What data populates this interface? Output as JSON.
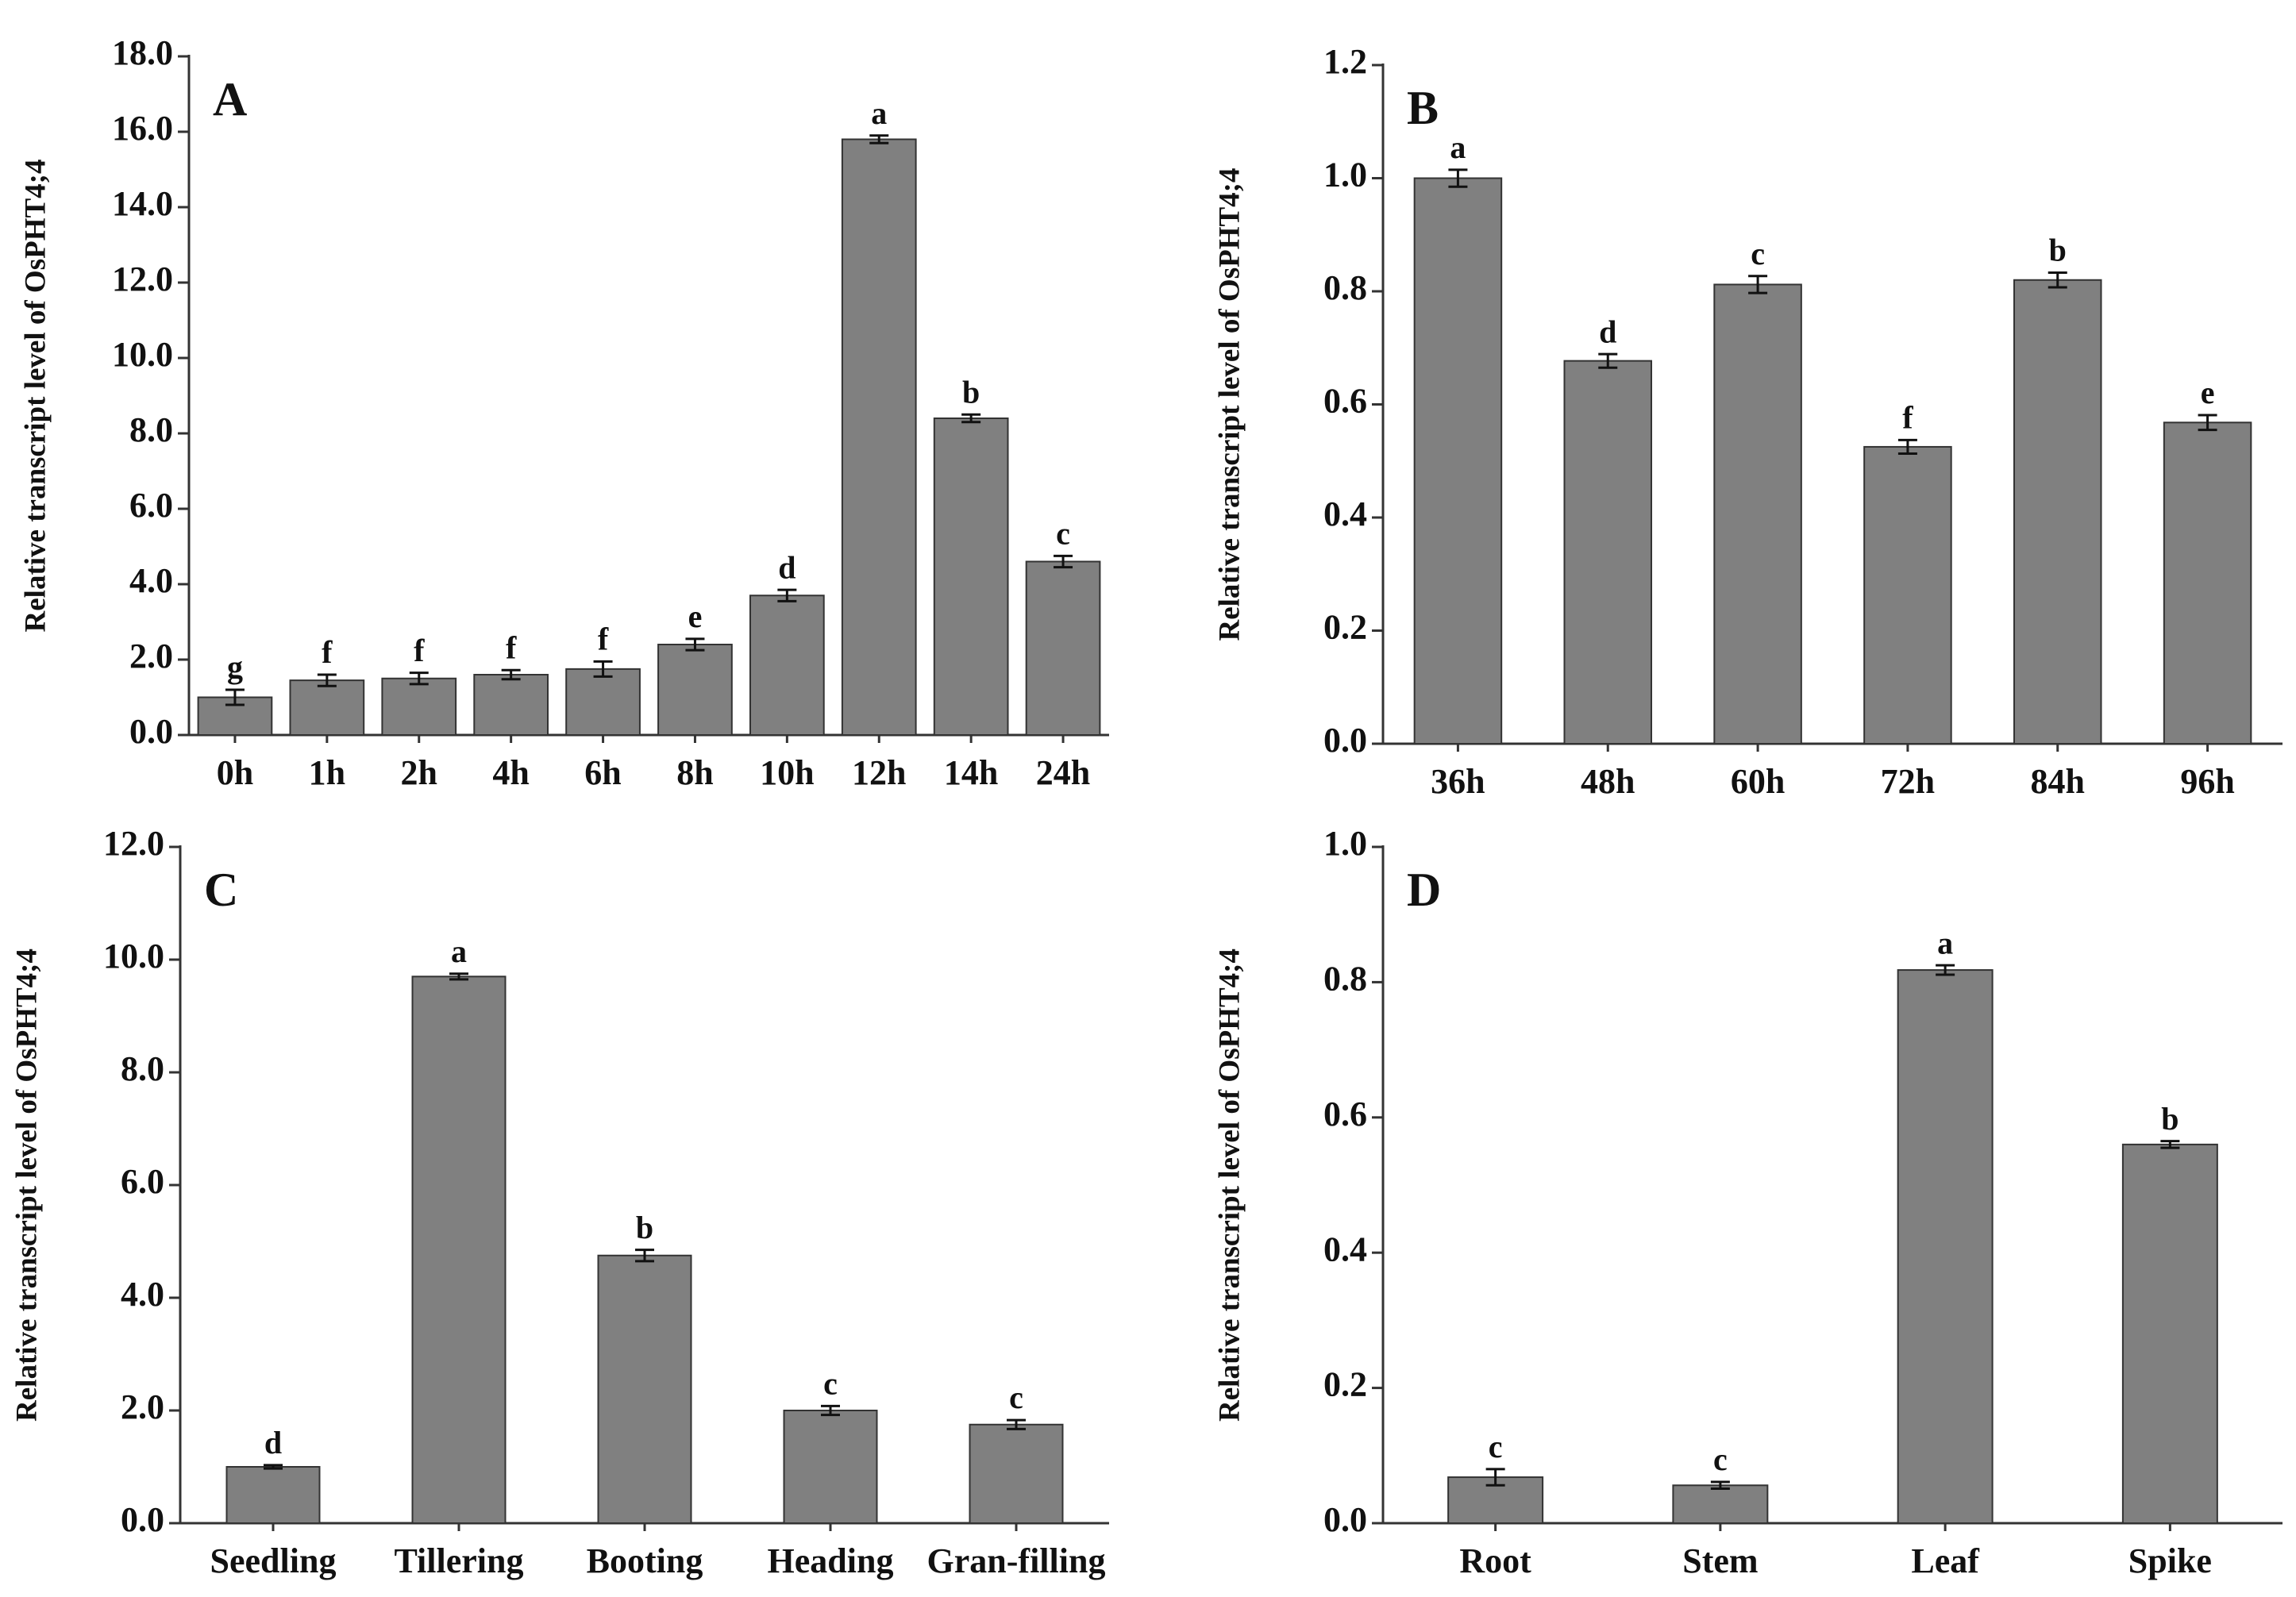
{
  "chart_data": [
    {
      "type": "bar",
      "panel_label": "A",
      "y_label": "Relative transcript level of OsPHT4;4",
      "color": "#808080",
      "categories": [
        "0h",
        "1h",
        "2h",
        "4h",
        "6h",
        "8h",
        "10h",
        "12h",
        "14h",
        "24h"
      ],
      "values": [
        1.0,
        1.45,
        1.5,
        1.6,
        1.75,
        2.4,
        3.7,
        15.8,
        8.4,
        4.6
      ],
      "errors": [
        0.2,
        0.15,
        0.15,
        0.12,
        0.2,
        0.15,
        0.15,
        0.1,
        0.1,
        0.15
      ],
      "annotations": [
        "g",
        "f",
        "f",
        "f",
        "f",
        "e",
        "d",
        "a",
        "b",
        "c"
      ],
      "ylim": [
        0,
        18
      ],
      "yticks": [
        {
          "value": 0,
          "label": "0.0"
        },
        {
          "value": 2,
          "label": "2.0"
        },
        {
          "value": 4,
          "label": "4.0"
        },
        {
          "value": 6,
          "label": "6.0"
        },
        {
          "value": 8,
          "label": "8.0"
        },
        {
          "value": 10,
          "label": "10.0"
        },
        {
          "value": 12,
          "label": "12.0"
        },
        {
          "value": 14,
          "label": "14.0"
        },
        {
          "value": 16,
          "label": "16.0"
        },
        {
          "value": 18,
          "label": "18.0"
        }
      ]
    },
    {
      "type": "bar",
      "panel_label": "B",
      "y_label": "Relative transcript level of OsPHT4;4",
      "color": "#808080",
      "categories": [
        "36h",
        "48h",
        "60h",
        "72h",
        "84h",
        "96h"
      ],
      "values": [
        1.0,
        0.677,
        0.812,
        0.525,
        0.82,
        0.568
      ],
      "errors": [
        0.015,
        0.012,
        0.015,
        0.012,
        0.013,
        0.013
      ],
      "annotations": [
        "a",
        "d",
        "c",
        "f",
        "b",
        "e"
      ],
      "ylim": [
        0,
        1.2
      ],
      "yticks": [
        {
          "value": 0,
          "label": "0.0"
        },
        0.2,
        0.4,
        0.6,
        0.8,
        {
          "value": 1,
          "label": "1.0"
        },
        1.2
      ]
    },
    {
      "type": "bar",
      "panel_label": "C",
      "y_label": "Relative transcript level of OsPHT4;4",
      "color": "#808080",
      "categories": [
        "Seedling",
        "Tillering",
        "Booting",
        "Heading",
        "Gran-filling"
      ],
      "values": [
        1.0,
        9.7,
        4.75,
        2.0,
        1.75
      ],
      "errors": [
        0.03,
        0.05,
        0.1,
        0.08,
        0.08
      ],
      "annotations": [
        "d",
        "a",
        "b",
        "c",
        "c"
      ],
      "ylim": [
        0,
        12
      ],
      "yticks": [
        {
          "value": 0,
          "label": "0.0"
        },
        {
          "value": 2,
          "label": "2.0"
        },
        {
          "value": 4,
          "label": "4.0"
        },
        {
          "value": 6,
          "label": "6.0"
        },
        {
          "value": 8,
          "label": "8.0"
        },
        {
          "value": 10,
          "label": "10.0"
        },
        {
          "value": 12,
          "label": "12.0"
        }
      ]
    },
    {
      "type": "bar",
      "panel_label": "D",
      "y_label": "Relative transcript level of OsPHT4;4",
      "color": "#808080",
      "categories": [
        "Root",
        "Stem",
        "Leaf",
        "Spike"
      ],
      "values": [
        0.068,
        0.056,
        0.818,
        0.56
      ],
      "errors": [
        0.012,
        0.005,
        0.007,
        0.005
      ],
      "annotations": [
        "c",
        "c",
        "a",
        "b"
      ],
      "ylim": [
        0,
        1
      ],
      "yticks": [
        {
          "value": 0,
          "label": "0.0"
        },
        0.2,
        0.4,
        0.6,
        0.8,
        {
          "value": 1,
          "label": "1.0"
        }
      ]
    }
  ]
}
